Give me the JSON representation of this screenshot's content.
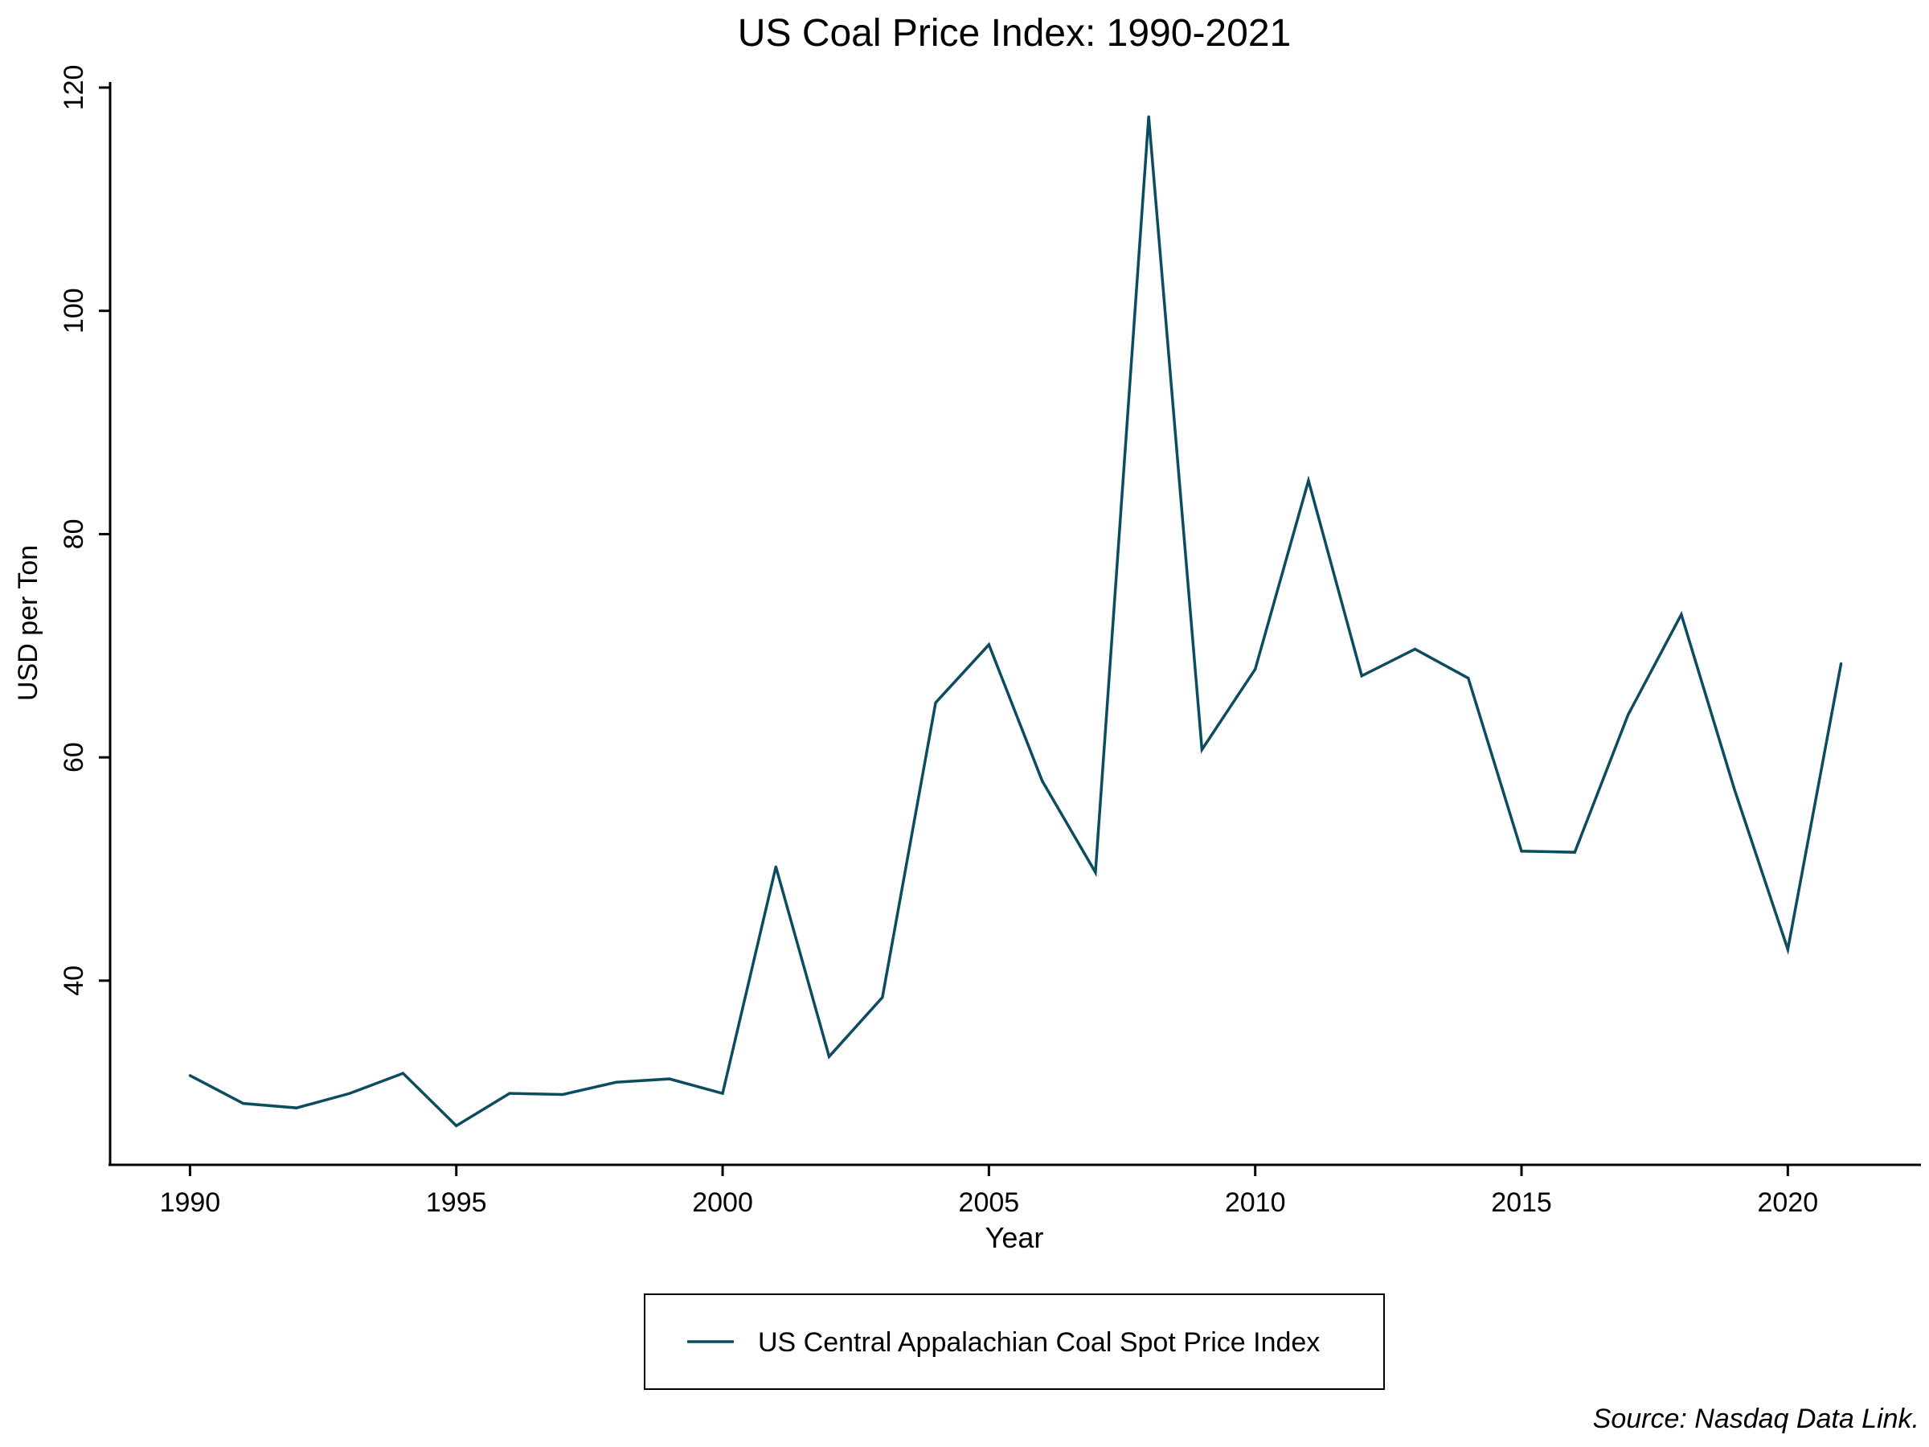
{
  "chart_data": {
    "type": "line",
    "title": "US Coal Price Index: 1990-2021",
    "xlabel": "Year",
    "ylabel": "USD per Ton",
    "x": [
      1990,
      1991,
      1992,
      1993,
      1994,
      1995,
      1996,
      1997,
      1998,
      1999,
      2000,
      2001,
      2002,
      2003,
      2004,
      2005,
      2006,
      2007,
      2008,
      2009,
      2010,
      2011,
      2012,
      2013,
      2014,
      2015,
      2016,
      2017,
      2018,
      2019,
      2020,
      2021
    ],
    "series": [
      {
        "name": "US Central Appalachian Coal Spot Price Index",
        "color": "#0b4c5f",
        "values": [
          31.5,
          29.0,
          28.6,
          29.9,
          31.7,
          27.0,
          29.9,
          29.8,
          30.9,
          31.2,
          29.9,
          50.2,
          33.2,
          38.5,
          64.9,
          70.1,
          57.9,
          49.7,
          117.4,
          60.7,
          67.9,
          84.8,
          67.3,
          69.7,
          67.1,
          51.6,
          51.5,
          63.8,
          72.8,
          57.1,
          42.8,
          68.4
        ]
      }
    ],
    "xticks": [
      1990,
      1995,
      2000,
      2005,
      2010,
      2015,
      2020
    ],
    "yticks": [
      40,
      60,
      80,
      100,
      120
    ],
    "xlim": [
      1988.5,
      2022.5
    ],
    "ylim": [
      23.5,
      120.5
    ],
    "grid": false,
    "legend_position": "bottom"
  },
  "source_note": "Source: Nasdaq Data Link."
}
